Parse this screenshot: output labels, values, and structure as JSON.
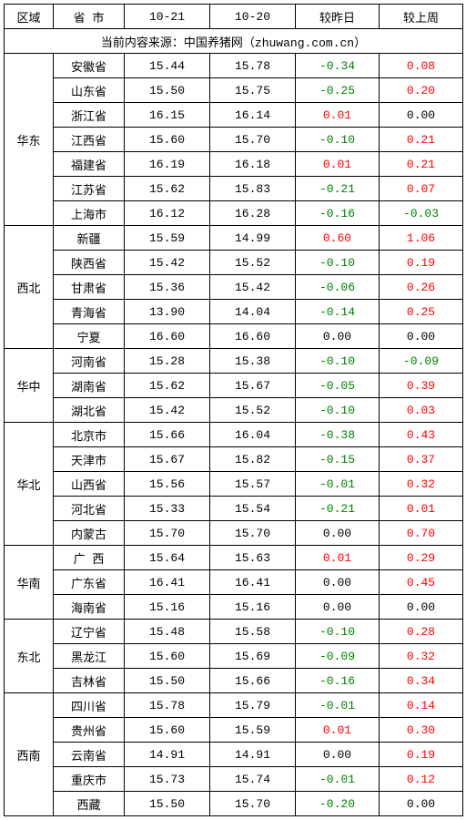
{
  "headers": {
    "region": "区域",
    "province": "省 市",
    "date1": "10-21",
    "date2": "10-20",
    "vs_yesterday": "较昨日",
    "vs_lastweek": "较上周"
  },
  "source_line": "当前内容来源：中国养猪网（zhuwang.com.cn）",
  "colors": {
    "neg": "#008000",
    "pos": "#ff0000",
    "neutral": "#000000"
  },
  "regions": [
    {
      "name": "华东",
      "rows": [
        {
          "prov": "安徽省",
          "d1": "15.44",
          "d2": "15.78",
          "dy": "-0.34",
          "dw": "0.08",
          "dyc": "neg",
          "dwc": "pos"
        },
        {
          "prov": "山东省",
          "d1": "15.50",
          "d2": "15.75",
          "dy": "-0.25",
          "dw": "0.20",
          "dyc": "neg",
          "dwc": "pos"
        },
        {
          "prov": "浙江省",
          "d1": "16.15",
          "d2": "16.14",
          "dy": "0.01",
          "dw": "0.00",
          "dyc": "pos",
          "dwc": "neutral"
        },
        {
          "prov": "江西省",
          "d1": "15.60",
          "d2": "15.70",
          "dy": "-0.10",
          "dw": "0.21",
          "dyc": "neg",
          "dwc": "pos"
        },
        {
          "prov": "福建省",
          "d1": "16.19",
          "d2": "16.18",
          "dy": "0.01",
          "dw": "0.21",
          "dyc": "pos",
          "dwc": "pos"
        },
        {
          "prov": "江苏省",
          "d1": "15.62",
          "d2": "15.83",
          "dy": "-0.21",
          "dw": "0.07",
          "dyc": "neg",
          "dwc": "pos"
        },
        {
          "prov": "上海市",
          "d1": "16.12",
          "d2": "16.28",
          "dy": "-0.16",
          "dw": "-0.03",
          "dyc": "neg",
          "dwc": "neg"
        }
      ]
    },
    {
      "name": "西北",
      "rows": [
        {
          "prov": "新疆",
          "d1": "15.59",
          "d2": "14.99",
          "dy": "0.60",
          "dw": "1.06",
          "dyc": "pos",
          "dwc": "pos"
        },
        {
          "prov": "陕西省",
          "d1": "15.42",
          "d2": "15.52",
          "dy": "-0.10",
          "dw": "0.19",
          "dyc": "neg",
          "dwc": "pos"
        },
        {
          "prov": "甘肃省",
          "d1": "15.36",
          "d2": "15.42",
          "dy": "-0.06",
          "dw": "0.26",
          "dyc": "neg",
          "dwc": "pos"
        },
        {
          "prov": "青海省",
          "d1": "13.90",
          "d2": "14.04",
          "dy": "-0.14",
          "dw": "0.25",
          "dyc": "neg",
          "dwc": "pos"
        },
        {
          "prov": "宁夏",
          "d1": "16.60",
          "d2": "16.60",
          "dy": "0.00",
          "dw": "0.00",
          "dyc": "neutral",
          "dwc": "neutral"
        }
      ]
    },
    {
      "name": "华中",
      "rows": [
        {
          "prov": "河南省",
          "d1": "15.28",
          "d2": "15.38",
          "dy": "-0.10",
          "dw": "-0.09",
          "dyc": "neg",
          "dwc": "neg"
        },
        {
          "prov": "湖南省",
          "d1": "15.62",
          "d2": "15.67",
          "dy": "-0.05",
          "dw": "0.39",
          "dyc": "neg",
          "dwc": "pos"
        },
        {
          "prov": "湖北省",
          "d1": "15.42",
          "d2": "15.52",
          "dy": "-0.10",
          "dw": "0.03",
          "dyc": "neg",
          "dwc": "pos"
        }
      ]
    },
    {
      "name": "华北",
      "rows": [
        {
          "prov": "北京市",
          "d1": "15.66",
          "d2": "16.04",
          "dy": "-0.38",
          "dw": "0.43",
          "dyc": "neg",
          "dwc": "pos"
        },
        {
          "prov": "天津市",
          "d1": "15.67",
          "d2": "15.82",
          "dy": "-0.15",
          "dw": "0.37",
          "dyc": "neg",
          "dwc": "pos"
        },
        {
          "prov": "山西省",
          "d1": "15.56",
          "d2": "15.57",
          "dy": "-0.01",
          "dw": "0.32",
          "dyc": "neg",
          "dwc": "pos"
        },
        {
          "prov": "河北省",
          "d1": "15.33",
          "d2": "15.54",
          "dy": "-0.21",
          "dw": "0.01",
          "dyc": "neg",
          "dwc": "pos"
        },
        {
          "prov": "内蒙古",
          "d1": "15.70",
          "d2": "15.70",
          "dy": "0.00",
          "dw": "0.70",
          "dyc": "neutral",
          "dwc": "pos"
        }
      ]
    },
    {
      "name": "华南",
      "rows": [
        {
          "prov": "广 西",
          "d1": "15.64",
          "d2": "15.63",
          "dy": "0.01",
          "dw": "0.29",
          "dyc": "pos",
          "dwc": "pos"
        },
        {
          "prov": "广东省",
          "d1": "16.41",
          "d2": "16.41",
          "dy": "0.00",
          "dw": "0.45",
          "dyc": "neutral",
          "dwc": "pos"
        },
        {
          "prov": "海南省",
          "d1": "15.16",
          "d2": "15.16",
          "dy": "0.00",
          "dw": "0.00",
          "dyc": "neutral",
          "dwc": "neutral"
        }
      ]
    },
    {
      "name": "东北",
      "rows": [
        {
          "prov": "辽宁省",
          "d1": "15.48",
          "d2": "15.58",
          "dy": "-0.10",
          "dw": "0.28",
          "dyc": "neg",
          "dwc": "pos"
        },
        {
          "prov": "黑龙江",
          "d1": "15.60",
          "d2": "15.69",
          "dy": "-0.09",
          "dw": "0.32",
          "dyc": "neg",
          "dwc": "pos"
        },
        {
          "prov": "吉林省",
          "d1": "15.50",
          "d2": "15.66",
          "dy": "-0.16",
          "dw": "0.34",
          "dyc": "neg",
          "dwc": "pos"
        }
      ]
    },
    {
      "name": "西南",
      "rows": [
        {
          "prov": "四川省",
          "d1": "15.78",
          "d2": "15.79",
          "dy": "-0.01",
          "dw": "0.14",
          "dyc": "neg",
          "dwc": "pos"
        },
        {
          "prov": "贵州省",
          "d1": "15.60",
          "d2": "15.59",
          "dy": "0.01",
          "dw": "0.30",
          "dyc": "pos",
          "dwc": "pos"
        },
        {
          "prov": "云南省",
          "d1": "14.91",
          "d2": "14.91",
          "dy": "0.00",
          "dw": "0.19",
          "dyc": "neutral",
          "dwc": "pos"
        },
        {
          "prov": "重庆市",
          "d1": "15.73",
          "d2": "15.74",
          "dy": "-0.01",
          "dw": "0.12",
          "dyc": "neg",
          "dwc": "pos"
        },
        {
          "prov": "西藏",
          "d1": "15.50",
          "d2": "15.70",
          "dy": "-0.20",
          "dw": "0.00",
          "dyc": "neg",
          "dwc": "neutral"
        }
      ]
    }
  ]
}
